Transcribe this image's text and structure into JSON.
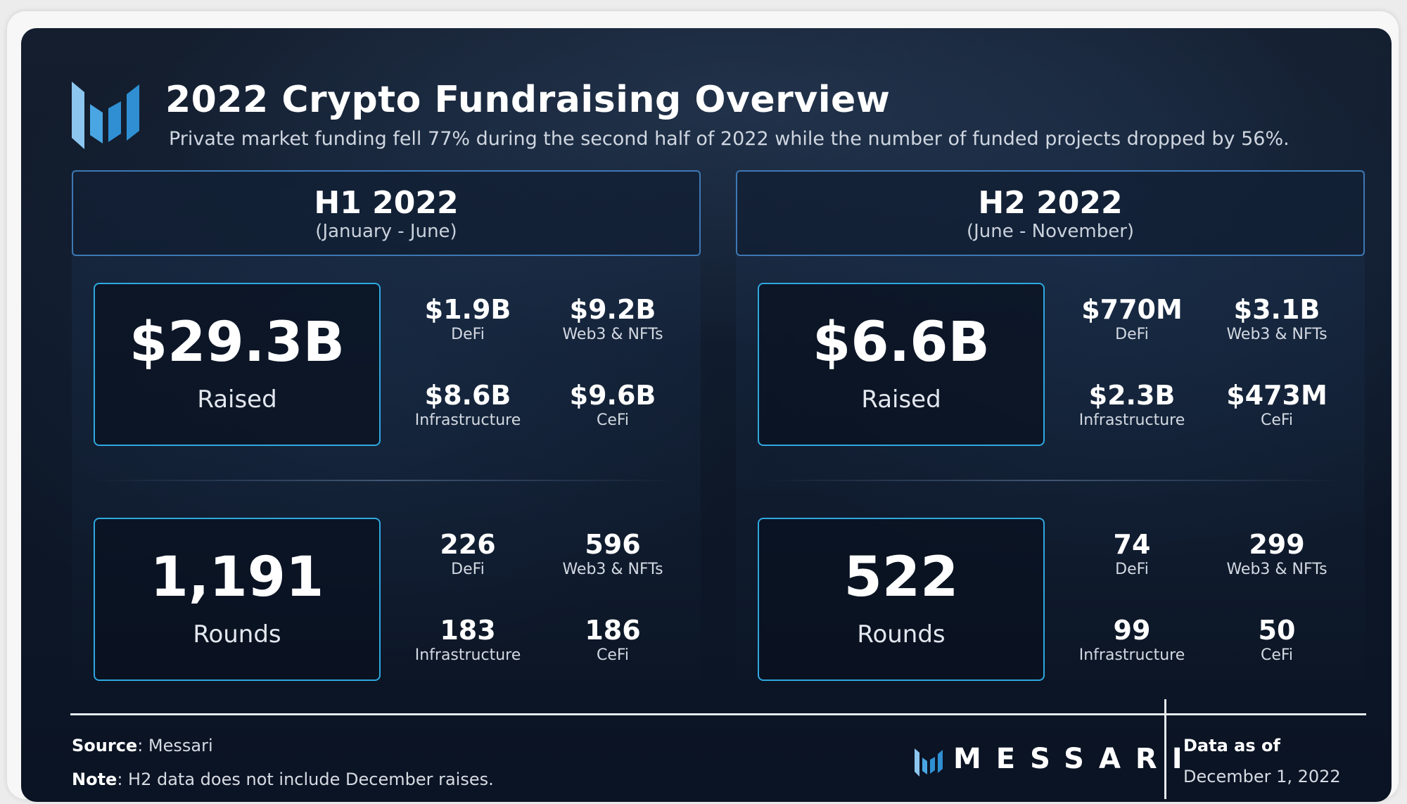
{
  "header": {
    "title": "2022 Crypto Fundraising Overview",
    "subtitle": "Private market funding fell 77% during the second half of 2022 while the number of funded projects dropped by 56%.",
    "logo_icon": "messari-m-icon"
  },
  "halves": [
    {
      "name": "H1 2022",
      "range": "(January - June)",
      "raised": {
        "value": "$29.3B",
        "label": "Raised",
        "stats": [
          {
            "value": "$1.9B",
            "label": "DeFi"
          },
          {
            "value": "$9.2B",
            "label": "Web3 & NFTs"
          },
          {
            "value": "$8.6B",
            "label": "Infrastructure"
          },
          {
            "value": "$9.6B",
            "label": "CeFi"
          }
        ]
      },
      "rounds": {
        "value": "1,191",
        "label": "Rounds",
        "stats": [
          {
            "value": "226",
            "label": "DeFi"
          },
          {
            "value": "596",
            "label": "Web3 & NFTs"
          },
          {
            "value": "183",
            "label": "Infrastructure"
          },
          {
            "value": "186",
            "label": "CeFi"
          }
        ]
      }
    },
    {
      "name": "H2 2022",
      "range": "(June - November)",
      "raised": {
        "value": "$6.6B",
        "label": "Raised",
        "stats": [
          {
            "value": "$770M",
            "label": "DeFi"
          },
          {
            "value": "$3.1B",
            "label": "Web3 & NFTs"
          },
          {
            "value": "$2.3B",
            "label": "Infrastructure"
          },
          {
            "value": "$473M",
            "label": "CeFi"
          }
        ]
      },
      "rounds": {
        "value": "522",
        "label": "Rounds",
        "stats": [
          {
            "value": "74",
            "label": "DeFi"
          },
          {
            "value": "299",
            "label": "Web3 & NFTs"
          },
          {
            "value": "99",
            "label": "Infrastructure"
          },
          {
            "value": "50",
            "label": "CeFi"
          }
        ]
      }
    }
  ],
  "footer": {
    "source_label": "Source",
    "source_value": ": Messari",
    "note_label": "Note",
    "note_value": ": H2 data does not include December raises.",
    "brand": "MESSARI",
    "data_as_of_label": "Data as of",
    "data_as_of_date": "December 1, 2022"
  },
  "colors": {
    "accent_border": "#2fa8e0",
    "header_border": "#3e78b4",
    "logo_light": "#8cc6ef",
    "logo_dark": "#2f8fd2"
  }
}
